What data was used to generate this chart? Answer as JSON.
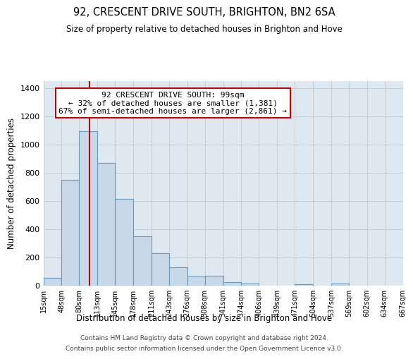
{
  "title": "92, CRESCENT DRIVE SOUTH, BRIGHTON, BN2 6SA",
  "subtitle": "Size of property relative to detached houses in Brighton and Hove",
  "xlabel": "Distribution of detached houses by size in Brighton and Hove",
  "ylabel": "Number of detached properties",
  "bin_labels": [
    "15sqm",
    "48sqm",
    "80sqm",
    "113sqm",
    "145sqm",
    "178sqm",
    "211sqm",
    "243sqm",
    "276sqm",
    "308sqm",
    "341sqm",
    "374sqm",
    "406sqm",
    "439sqm",
    "471sqm",
    "504sqm",
    "537sqm",
    "569sqm",
    "602sqm",
    "634sqm",
    "667sqm"
  ],
  "bin_edges": [
    15,
    48,
    80,
    113,
    145,
    178,
    211,
    243,
    276,
    308,
    341,
    374,
    406,
    439,
    471,
    504,
    537,
    569,
    602,
    634,
    667
  ],
  "bar_heights": [
    55,
    750,
    1095,
    870,
    615,
    350,
    230,
    130,
    65,
    70,
    25,
    15,
    0,
    0,
    10,
    0,
    15,
    0,
    0,
    0
  ],
  "bar_color": "#c8d8e8",
  "bar_edge_color": "#6699bb",
  "property_line_x": 99,
  "property_line_color": "#cc0000",
  "annotation_title": "92 CRESCENT DRIVE SOUTH: 99sqm",
  "annotation_line1": "← 32% of detached houses are smaller (1,381)",
  "annotation_line2": "67% of semi-detached houses are larger (2,861) →",
  "annotation_box_facecolor": "#ffffff",
  "annotation_box_edgecolor": "#cc0000",
  "ylim": [
    0,
    1450
  ],
  "yticks": [
    0,
    200,
    400,
    600,
    800,
    1000,
    1200,
    1400
  ],
  "grid_color": "#cccccc",
  "background_color": "#dde8f0",
  "footnote1": "Contains HM Land Registry data © Crown copyright and database right 2024.",
  "footnote2": "Contains public sector information licensed under the Open Government Licence v3.0."
}
